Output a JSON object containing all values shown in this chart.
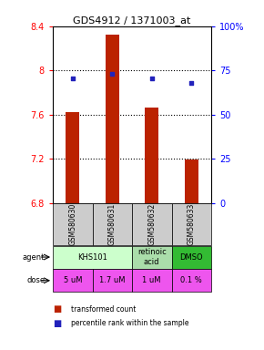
{
  "title": "GDS4912 / 1371003_at",
  "samples": [
    "GSM580630",
    "GSM580631",
    "GSM580632",
    "GSM580633"
  ],
  "bar_values": [
    7.62,
    8.32,
    7.66,
    7.19
  ],
  "bar_base": 6.8,
  "blue_dot_values": [
    7.93,
    7.97,
    7.93,
    7.89
  ],
  "ylim_left": [
    6.8,
    8.4
  ],
  "ylim_right": [
    0,
    100
  ],
  "yticks_left": [
    6.8,
    7.2,
    7.6,
    8.0,
    8.4
  ],
  "yticks_right": [
    0,
    25,
    50,
    75,
    100
  ],
  "ytick_labels_left": [
    "6.8",
    "7.2",
    "7.6",
    "8",
    "8.4"
  ],
  "ytick_labels_right": [
    "0",
    "25",
    "50",
    "75",
    "100%"
  ],
  "hlines": [
    8.0,
    7.6,
    7.2
  ],
  "bar_color": "#bb2200",
  "dot_color": "#2222bb",
  "agent_data": [
    [
      0,
      2,
      "KHS101",
      "#ccffcc"
    ],
    [
      2,
      1,
      "retinoic\nacid",
      "#aaddaa"
    ],
    [
      3,
      1,
      "DMSO",
      "#33bb33"
    ]
  ],
  "dose_labels": [
    "5 uM",
    "1.7 uM",
    "1 uM",
    "0.1 %"
  ],
  "dose_color": "#ee55ee",
  "sample_box_color": "#cccccc",
  "legend_red_label": "transformed count",
  "legend_blue_label": "percentile rank within the sample",
  "bar_width": 0.35
}
